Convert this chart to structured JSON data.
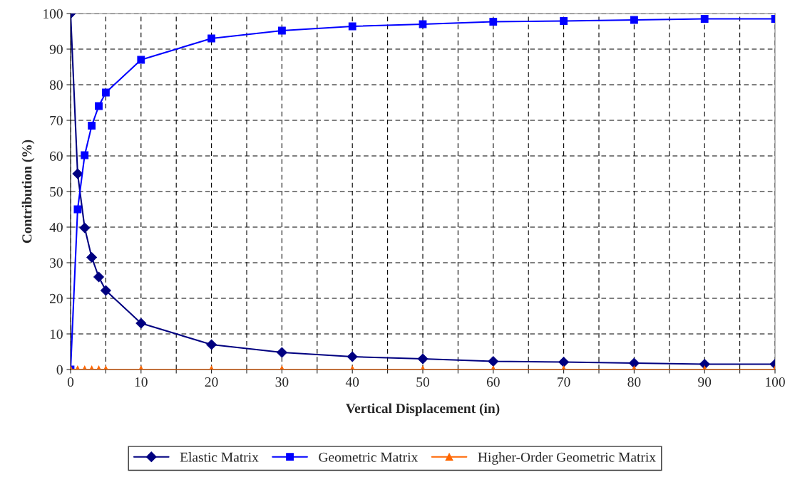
{
  "chart_data": {
    "type": "line",
    "xlabel": "Vertical Displacement (in)",
    "ylabel": "Contribution (%)",
    "x": [
      0,
      1,
      2,
      3,
      4,
      5,
      10,
      20,
      30,
      40,
      50,
      60,
      70,
      80,
      90,
      100
    ],
    "series": [
      {
        "name": "Elastic Matrix",
        "color": "#000080",
        "marker": "diamond",
        "values": [
          100,
          55,
          39.8,
          31.5,
          26,
          22.2,
          13,
          7,
          4.8,
          3.6,
          3,
          2.3,
          2.1,
          1.8,
          1.5,
          1.5
        ]
      },
      {
        "name": "Geometric Matrix",
        "color": "#0000ff",
        "marker": "square",
        "values": [
          0,
          45,
          60.2,
          68.5,
          74,
          77.8,
          87,
          93,
          95.2,
          96.4,
          97,
          97.7,
          97.9,
          98.2,
          98.5,
          98.5
        ]
      },
      {
        "name": "Higher-Order Geometric Matrix",
        "color": "#ff6600",
        "marker": "triangle",
        "values": [
          0,
          0,
          0,
          0,
          0,
          0,
          0,
          0,
          0,
          0,
          0,
          0,
          0,
          0,
          0,
          0
        ]
      }
    ],
    "xlim": [
      0,
      100
    ],
    "ylim": [
      0,
      100
    ],
    "xticks": [
      0,
      {
        "value": 5,
        "label": null
      },
      10,
      {
        "value": 15,
        "label": null
      },
      20,
      {
        "value": 25,
        "label": null
      },
      30,
      {
        "value": 35,
        "label": null
      },
      40,
      {
        "value": 45,
        "label": null
      },
      50,
      {
        "value": 55,
        "label": null
      },
      60,
      {
        "value": 65,
        "label": null
      },
      70,
      {
        "value": 75,
        "label": null
      },
      80,
      {
        "value": 85,
        "label": null
      },
      90,
      {
        "value": 95,
        "label": null
      },
      100
    ],
    "yticks": [
      0,
      10,
      20,
      30,
      40,
      50,
      60,
      70,
      80,
      90,
      100
    ],
    "grid": true,
    "legend": "bottom",
    "line_style": "solid"
  }
}
